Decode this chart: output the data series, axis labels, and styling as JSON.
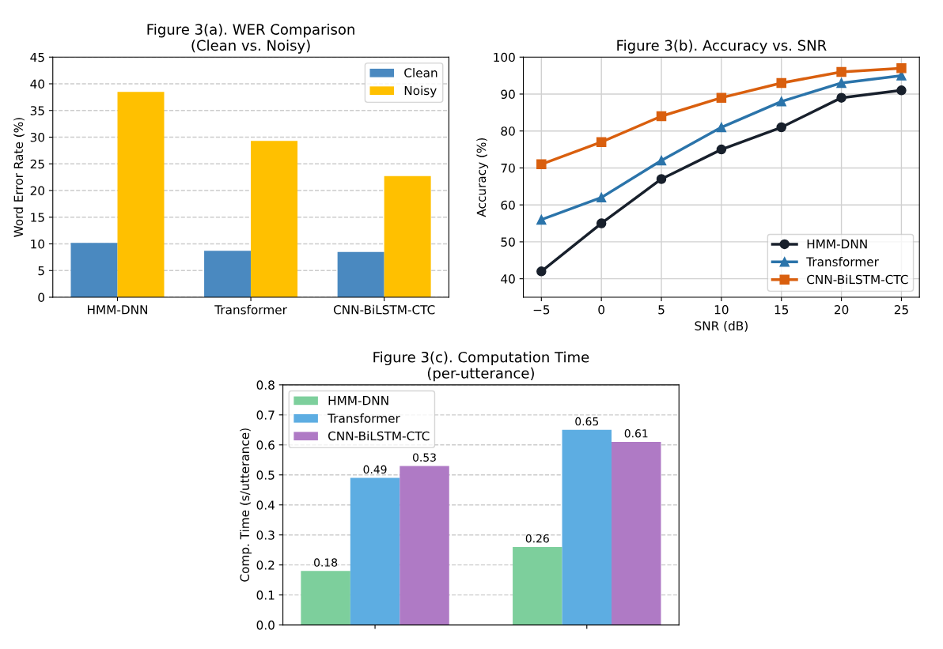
{
  "chart_data": [
    {
      "type": "bar",
      "title": "Figure 3(a). WER Comparison\n(Clean vs. Noisy)",
      "ylabel": "Word Error Rate (%)",
      "categories": [
        "HMM-DNN",
        "Transformer",
        "CNN-BiLSTM-CTC"
      ],
      "series": [
        {
          "name": "Clean",
          "color": "#4a89c0",
          "values": [
            10.2,
            8.7,
            8.5
          ]
        },
        {
          "name": "Noisy",
          "color": "#ffc000",
          "values": [
            38.5,
            29.3,
            22.7
          ]
        }
      ],
      "ylim": [
        0,
        45
      ],
      "yticks": [
        0,
        5,
        10,
        15,
        20,
        25,
        30,
        35,
        40,
        45
      ],
      "grid": "y",
      "legend": "top right"
    },
    {
      "type": "line",
      "title": "Figure 3(b). Accuracy vs. SNR",
      "xlabel": "SNR (dB)",
      "ylabel": "Accuracy (%)",
      "x": [
        -5,
        0,
        5,
        10,
        15,
        20,
        25
      ],
      "series": [
        {
          "name": "HMM-DNN",
          "color": "#18202c",
          "marker": "circle",
          "values": [
            42,
            55,
            67,
            75,
            81,
            89,
            91
          ]
        },
        {
          "name": "Transformer",
          "color": "#2b74aa",
          "marker": "triangle",
          "values": [
            56,
            62,
            72,
            81,
            88,
            93,
            95
          ]
        },
        {
          "name": "CNN-BiLSTM-CTC",
          "color": "#d95f0e",
          "marker": "square",
          "values": [
            71,
            77,
            84,
            89,
            93,
            96,
            97
          ]
        }
      ],
      "xlim": [
        -6.5,
        26.5
      ],
      "xticks": [
        {
          "value": -5,
          "label": "−5"
        },
        0,
        5,
        10,
        15,
        20,
        25
      ],
      "ylim": [
        35,
        100
      ],
      "yticks": [
        40,
        50,
        60,
        70,
        80,
        90,
        100
      ],
      "grid": true,
      "legend": "bottom right",
      "line_style": "solid"
    },
    {
      "type": "bar",
      "title": "Figure 3(c). Computation Time\n(per-utterance)",
      "ylabel": "Comp. Time (s/utterance)",
      "categories": [
        null,
        null
      ],
      "series": [
        {
          "name": "HMM-DNN",
          "color": "#7dcf9c",
          "values": [
            0.18,
            0.26
          ]
        },
        {
          "name": "Transformer",
          "color": "#5dade2",
          "values": [
            0.49,
            0.65
          ]
        },
        {
          "name": "CNN-BiLSTM-CTC",
          "color": "#af7ac5",
          "values": [
            0.53,
            0.61
          ]
        }
      ],
      "ylim": [
        0,
        0.8
      ],
      "yticks": [
        {
          "value": 0,
          "label": "0.0"
        },
        0.1,
        0.2,
        0.3,
        0.4,
        0.5,
        0.6,
        0.7,
        0.8
      ],
      "grid": "y",
      "legend": "top left",
      "data_labels": true
    }
  ]
}
